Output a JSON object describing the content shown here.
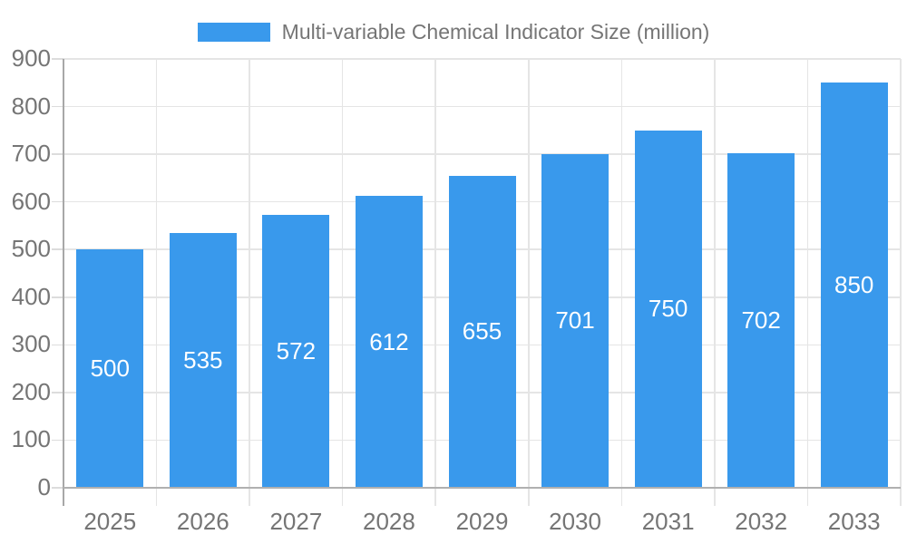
{
  "chart_data": {
    "type": "bar",
    "title": "Multi-variable Chemical Indicator Size (million)",
    "series_name": "Multi-variable Chemical Indicator Size (million)",
    "categories": [
      "2025",
      "2026",
      "2027",
      "2028",
      "2029",
      "2030",
      "2031",
      "2032",
      "2033"
    ],
    "values": [
      500,
      535,
      572,
      612,
      655,
      701,
      750,
      702,
      850
    ],
    "value_labels": [
      "500",
      "535",
      "572",
      "612",
      "655",
      "701",
      "750",
      "702",
      "850"
    ],
    "xlabel": "",
    "ylabel": "",
    "ylim": [
      0,
      900
    ],
    "ytick_step": 100,
    "yticks": [
      0,
      100,
      200,
      300,
      400,
      500,
      600,
      700,
      800,
      900
    ],
    "ytick_labels": [
      "0",
      "100",
      "200",
      "300",
      "400",
      "500",
      "600",
      "700",
      "800",
      "900"
    ],
    "grid": "horizontal lines at each y tick, vertical lines at category boundaries",
    "legend_position": "top-center",
    "value_label_position": "centered inside bar"
  },
  "legend": {
    "label": "Multi-variable Chemical Indicator Size (million)"
  },
  "colors": {
    "bar": "#3999ec",
    "grid_line": "#e5e5e5",
    "axis_line": "#a8a8a8",
    "tick_line": "#dcdcdc",
    "label_text": "#757575",
    "value_text": "#ffffff",
    "background": "#ffffff"
  }
}
